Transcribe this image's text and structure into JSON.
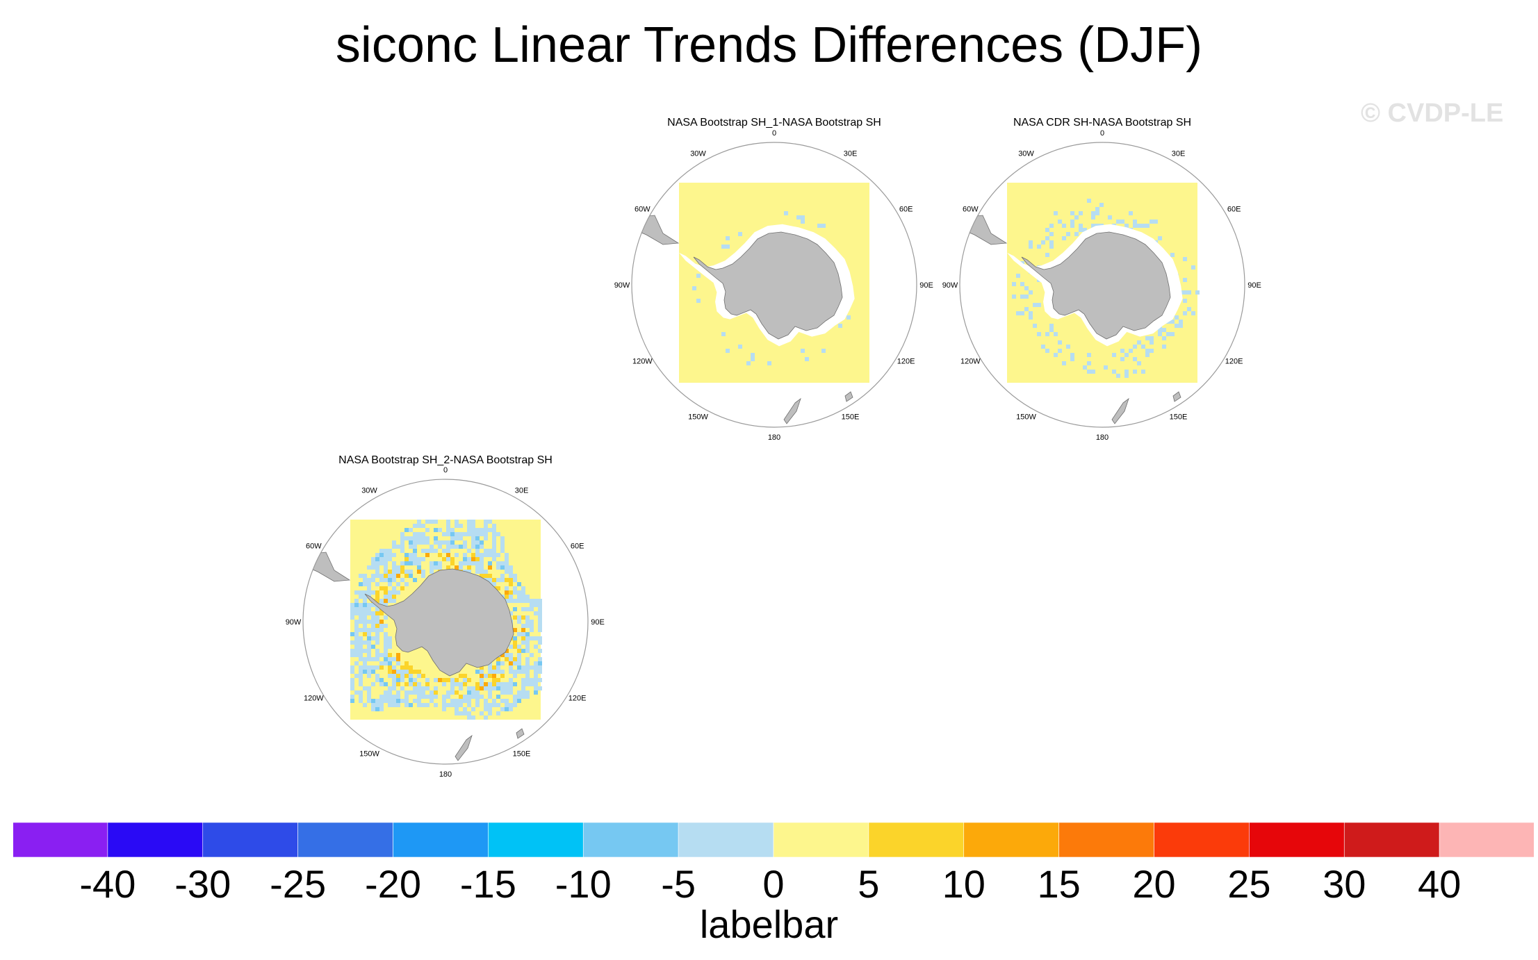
{
  "title": "siconc Linear Trends Differences (DJF)",
  "watermark": "© CVDP-LE",
  "chart_data": {
    "type": "heatmap",
    "projection": "south-polar-stereographic",
    "variable": "siconc",
    "season": "DJF",
    "panels": [
      {
        "title": "NASA Bootstrap SH_1-NASA Bootstrap SH",
        "anomaly_level": "low",
        "dominant_bin": "0 to 5",
        "secondary_bin": "-5 to 0"
      },
      {
        "title": "NASA CDR SH-NASA Bootstrap SH",
        "anomaly_level": "moderate",
        "dominant_bin": "0 to 5",
        "secondary_bin": "-5 to 0"
      },
      {
        "title": "NASA Bootstrap SH_2-NASA Bootstrap SH",
        "anomaly_level": "high",
        "dominant_bin": "0 to 5",
        "secondary_bin": "-5 to 0"
      }
    ],
    "lon_labels": [
      "0",
      "30E",
      "60E",
      "90E",
      "120E",
      "150E",
      "180",
      "150W",
      "120W",
      "90W",
      "60W",
      "30W"
    ],
    "colorbar": {
      "title": "labelbar",
      "levels": [
        "-40",
        "-30",
        "-25",
        "-20",
        "-15",
        "-10",
        "-5",
        "0",
        "5",
        "10",
        "15",
        "20",
        "25",
        "30",
        "40"
      ],
      "colors": [
        "#8a1ff2",
        "#2a0af5",
        "#2e4be8",
        "#356fe6",
        "#1e98f5",
        "#00c2f6",
        "#76c8f2",
        "#b6ddf2",
        "#fdf68d",
        "#fbd42a",
        "#fca90a",
        "#fc7a0a",
        "#fb3b0a",
        "#e6060a",
        "#cf1b1b",
        "#fdb5b5"
      ]
    }
  },
  "colors": {
    "land": "#bebebe",
    "ocean_ice_free": "#ffffff",
    "coast": "#6e6e6e"
  }
}
